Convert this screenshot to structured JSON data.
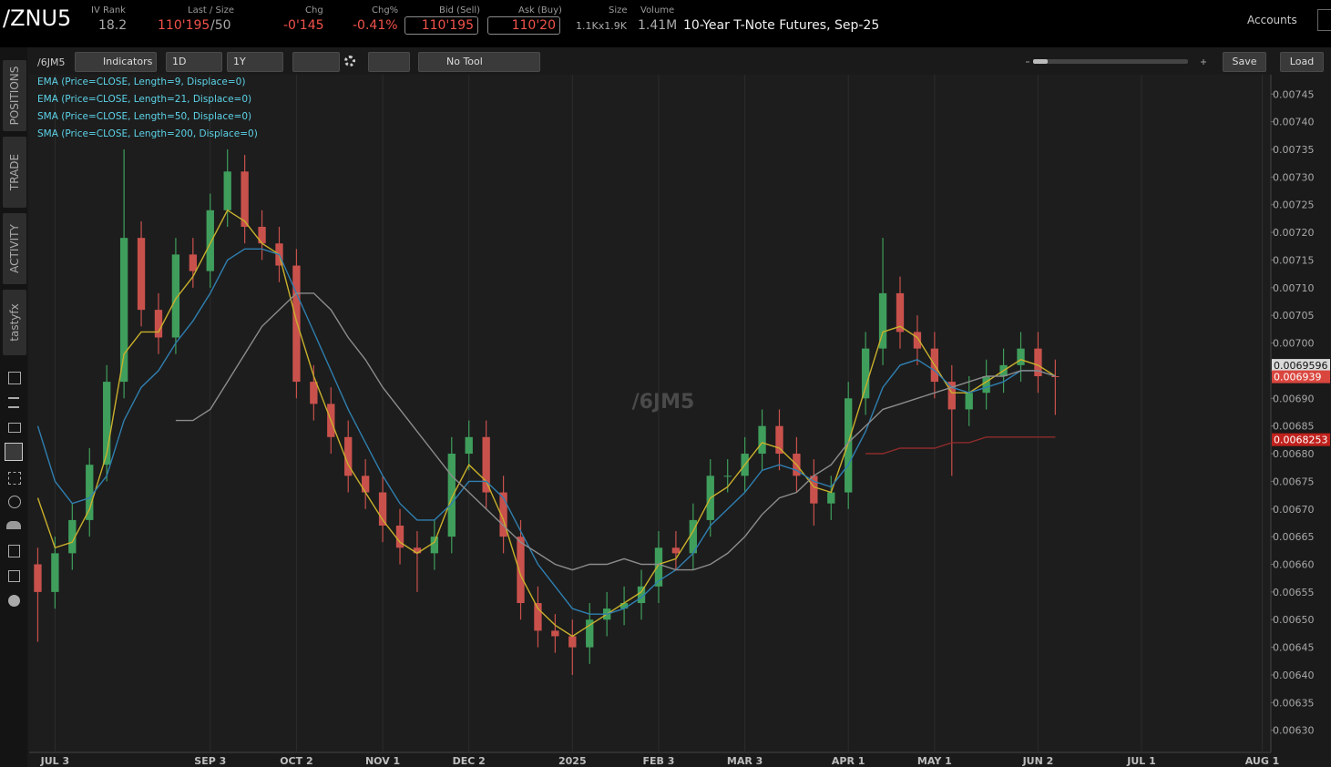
{
  "header": {
    "symbol": "/ZNU5",
    "iv_rank_label": "IV Rank",
    "iv_rank": 18.2,
    "last_label": "Last / Size",
    "last": "110'195",
    "size_last": "/50",
    "chg_label": "Chg",
    "chg": "-0'145",
    "chg_pct_label": "Chg%",
    "chg_pct": "-0.41%",
    "bid_label": "Bid (Sell)",
    "bid": "110'195",
    "ask_label": "Ask (Buy)",
    "ask": "110'20",
    "size_label": "Size",
    "size": "1.1Kx1.9K",
    "volume_label": "Volume",
    "volume": "1.41M",
    "description": "10-Year T-Note Futures, Sep-25",
    "accounts": "Accounts"
  },
  "sidebar": {
    "tabs": [
      "POSITIONS",
      "TRADE",
      "ACTIVITY",
      "tastyfx"
    ]
  },
  "toolbar": {
    "symbol": "/6JM5",
    "indicators": "Indicators",
    "interval": "1D",
    "range": "1Y",
    "tool": "No Tool",
    "save": "Save",
    "load": "Load"
  },
  "chart_data": {
    "type": "candlestick",
    "watermark": "/6JM5",
    "categories": [
      null,
      "JUL 3",
      null,
      null,
      null,
      null,
      null,
      null,
      null,
      null,
      "SEP 3",
      null,
      null,
      null,
      null,
      "OCT 2",
      null,
      null,
      null,
      null,
      "NOV 1",
      null,
      null,
      null,
      null,
      "DEC 2",
      null,
      null,
      null,
      null,
      null,
      "2025",
      null,
      null,
      null,
      null,
      "FEB 3",
      null,
      null,
      null,
      null,
      "MAR 3",
      null,
      null,
      null,
      null,
      null,
      "APR 1",
      null,
      null,
      null,
      null,
      "MAY 1",
      null,
      null,
      null,
      null,
      null,
      "JUN 2",
      null,
      null,
      null,
      null,
      null,
      "JUL 1",
      null,
      null,
      null,
      null,
      null,
      null,
      "AUG 1"
    ],
    "open": [
      0.0066,
      0.00655,
      0.00662,
      0.00668,
      0.00678,
      0.00693,
      0.00719,
      0.00706,
      0.00701,
      0.00716,
      0.00713,
      0.00724,
      0.00731,
      0.00721,
      0.00718,
      0.00714,
      0.00693,
      0.00689,
      0.00683,
      0.00676,
      0.00673,
      0.00667,
      0.00663,
      0.00662,
      0.00665,
      0.0068,
      0.00683,
      0.00673,
      0.00665,
      0.00653,
      0.00648,
      0.00647,
      0.00645,
      0.0065,
      0.00652,
      0.00653,
      0.00656,
      0.00663,
      0.00662,
      0.00668,
      0.00676,
      0.00676,
      0.0068,
      0.00685,
      0.0068,
      0.00676,
      0.00671,
      0.00673,
      0.0069,
      0.00699,
      0.00709,
      0.00702,
      0.00699,
      0.00693,
      0.00688,
      0.00691,
      0.00694,
      0.00696,
      0.00699,
      0.00694,
      null,
      null,
      null,
      null,
      null,
      null,
      null,
      null,
      null,
      null,
      null,
      null
    ],
    "high": [
      0.00663,
      0.00665,
      0.00671,
      0.00681,
      0.00696,
      0.00735,
      0.00722,
      0.00709,
      0.00719,
      0.00719,
      0.00727,
      0.00735,
      0.00734,
      0.00724,
      0.00721,
      0.00717,
      0.00696,
      0.00692,
      0.00686,
      0.00679,
      0.00676,
      0.0067,
      0.00666,
      0.00668,
      0.00683,
      0.00686,
      0.00686,
      0.00676,
      0.00668,
      0.00656,
      0.00651,
      0.0065,
      0.00653,
      0.00655,
      0.00656,
      0.00659,
      0.00666,
      0.00666,
      0.00671,
      0.00679,
      0.00679,
      0.00683,
      0.00688,
      0.00688,
      0.00683,
      0.00679,
      0.00676,
      0.00693,
      0.00702,
      0.00719,
      0.00712,
      0.00705,
      0.00702,
      0.00696,
      0.00694,
      0.00697,
      0.00699,
      0.00702,
      0.00702,
      0.00697,
      null,
      null,
      null,
      null,
      null,
      null,
      null,
      null,
      null,
      null,
      null,
      null
    ],
    "low": [
      0.00646,
      0.00652,
      0.00659,
      0.00665,
      0.00675,
      0.0069,
      0.00703,
      0.00698,
      0.00698,
      0.0071,
      0.0071,
      0.00721,
      0.00718,
      0.00715,
      0.00711,
      0.0069,
      0.00686,
      0.0068,
      0.00673,
      0.0067,
      0.00664,
      0.0066,
      0.00655,
      0.00659,
      0.00662,
      0.00677,
      0.0067,
      0.00662,
      0.0065,
      0.00645,
      0.00644,
      0.0064,
      0.00642,
      0.00647,
      0.00649,
      0.0065,
      0.00653,
      0.00659,
      0.00659,
      0.00665,
      0.00673,
      0.00673,
      0.00677,
      0.00677,
      0.00673,
      0.00667,
      0.00668,
      0.0067,
      0.00687,
      0.00696,
      0.00699,
      0.00696,
      0.0069,
      0.00676,
      0.00685,
      0.00688,
      0.00691,
      0.00693,
      0.00691,
      0.00687,
      null,
      null,
      null,
      null,
      null,
      null,
      null,
      null,
      null,
      null,
      null,
      null
    ],
    "close": [
      0.00655,
      0.00662,
      0.00668,
      0.00678,
      0.00693,
      0.00719,
      0.00706,
      0.00701,
      0.00716,
      0.00713,
      0.00724,
      0.00731,
      0.00721,
      0.00718,
      0.00714,
      0.00693,
      0.00689,
      0.00683,
      0.00676,
      0.00673,
      0.00667,
      0.00663,
      0.00662,
      0.00665,
      0.0068,
      0.00683,
      0.00673,
      0.00665,
      0.00653,
      0.00648,
      0.00647,
      0.00645,
      0.0065,
      0.00652,
      0.00653,
      0.00656,
      0.00663,
      0.00662,
      0.00668,
      0.00676,
      0.00676,
      0.0068,
      0.00685,
      0.0068,
      0.00676,
      0.00671,
      0.00673,
      0.0069,
      0.00699,
      0.00709,
      0.00702,
      0.00699,
      0.00693,
      0.00688,
      0.00691,
      0.00694,
      0.00696,
      0.00699,
      0.00694,
      0.006939,
      null,
      null,
      null,
      null,
      null,
      null,
      null,
      null,
      null,
      null,
      null,
      null
    ],
    "up_color": "#3f9e5c",
    "down_color": "#c9514c",
    "series": [
      {
        "name": "EMA (Price=CLOSE, Length=9, Displace=0)",
        "color": "#c9b02c",
        "values": [
          0.00672,
          0.00663,
          0.00664,
          0.0067,
          0.0068,
          0.00698,
          0.00702,
          0.00702,
          0.00708,
          0.00712,
          0.00718,
          0.00724,
          0.00722,
          0.00718,
          0.00716,
          0.00704,
          0.00694,
          0.00686,
          0.00678,
          0.00673,
          0.00668,
          0.00664,
          0.00662,
          0.00664,
          0.00672,
          0.00678,
          0.00675,
          0.00668,
          0.00658,
          0.00652,
          0.00649,
          0.00647,
          0.00649,
          0.00651,
          0.00653,
          0.00655,
          0.0066,
          0.00661,
          0.00666,
          0.00672,
          0.00674,
          0.00678,
          0.00682,
          0.00681,
          0.00678,
          0.00674,
          0.00673,
          0.00682,
          0.00692,
          0.00702,
          0.00703,
          0.00701,
          0.00696,
          0.00691,
          0.00691,
          0.00693,
          0.00695,
          0.00697,
          0.00696,
          0.00694,
          null,
          null,
          null,
          null,
          null,
          null,
          null,
          null,
          null,
          null,
          null,
          null
        ]
      },
      {
        "name": "EMA (Price=CLOSE, Length=21, Displace=0)",
        "color": "#2f7fb0",
        "values": [
          0.00685,
          0.00675,
          0.00671,
          0.00672,
          0.00676,
          0.00686,
          0.00692,
          0.00695,
          0.007,
          0.00704,
          0.00709,
          0.00715,
          0.00717,
          0.00717,
          0.00716,
          0.00709,
          0.00702,
          0.00695,
          0.00688,
          0.00682,
          0.00676,
          0.00671,
          0.00668,
          0.00668,
          0.00671,
          0.00675,
          0.00675,
          0.00672,
          0.00666,
          0.0066,
          0.00656,
          0.00652,
          0.00651,
          0.00651,
          0.00652,
          0.00654,
          0.00657,
          0.00659,
          0.00662,
          0.00667,
          0.0067,
          0.00673,
          0.00677,
          0.00678,
          0.00677,
          0.00675,
          0.00674,
          0.00678,
          0.00684,
          0.00692,
          0.00696,
          0.00697,
          0.00695,
          0.00692,
          0.00691,
          0.00692,
          0.00693,
          0.00695,
          0.00695,
          0.00694,
          null,
          null,
          null,
          null,
          null,
          null,
          null,
          null,
          null,
          null,
          null,
          null
        ]
      },
      {
        "name": "SMA (Price=CLOSE, Length=50, Displace=0)",
        "color": "#8c8c8c",
        "values": [
          null,
          null,
          null,
          null,
          null,
          null,
          null,
          null,
          0.00686,
          0.00686,
          0.00688,
          0.00693,
          0.00698,
          0.00703,
          0.00706,
          0.00709,
          0.00709,
          0.00706,
          0.00701,
          0.00697,
          0.00692,
          0.00688,
          0.00684,
          0.0068,
          0.00676,
          0.00673,
          0.0067,
          0.00667,
          0.00664,
          0.00662,
          0.0066,
          0.00659,
          0.0066,
          0.0066,
          0.00661,
          0.0066,
          0.0066,
          0.00659,
          0.00659,
          0.0066,
          0.00662,
          0.00665,
          0.00669,
          0.00672,
          0.00673,
          0.00676,
          0.00678,
          0.00682,
          0.00685,
          0.00688,
          0.00689,
          0.0069,
          0.00691,
          0.00692,
          0.00693,
          0.00694,
          0.00694,
          0.00695,
          0.00695,
          0.00694,
          null,
          null,
          null,
          null,
          null,
          null,
          null,
          null,
          null,
          null,
          null,
          null
        ]
      },
      {
        "name": "SMA (Price=CLOSE, Length=200, Displace=0)",
        "color": "#8e2b2b",
        "values": [
          null,
          null,
          null,
          null,
          null,
          null,
          null,
          null,
          null,
          null,
          null,
          null,
          null,
          null,
          null,
          null,
          null,
          null,
          null,
          null,
          null,
          null,
          null,
          null,
          null,
          null,
          null,
          null,
          null,
          null,
          null,
          null,
          null,
          null,
          null,
          null,
          null,
          null,
          null,
          null,
          null,
          null,
          null,
          null,
          null,
          null,
          null,
          null,
          0.0068,
          0.0068,
          0.00681,
          0.00681,
          0.00681,
          0.00682,
          0.00682,
          0.00683,
          0.00683,
          0.00683,
          0.00683,
          0.00683,
          null,
          null,
          null,
          null,
          null,
          null,
          null,
          null,
          null,
          null,
          null,
          null
        ]
      }
    ],
    "ylim": [
      0.00626,
      0.007485
    ],
    "yticks": [
      {
        "value": 0.0063,
        "label": "0.00630"
      },
      0.00635,
      {
        "value": 0.0064,
        "label": "0.00640"
      },
      0.00645,
      {
        "value": 0.0065,
        "label": "0.00650"
      },
      0.00655,
      {
        "value": 0.0066,
        "label": "0.00660"
      },
      0.00665,
      {
        "value": 0.0067,
        "label": "0.00670"
      },
      0.00675,
      {
        "value": 0.0068,
        "label": "0.00680"
      },
      0.00685,
      {
        "value": 0.0069,
        "label": "0.00690"
      },
      0.00695,
      {
        "value": 0.007,
        "label": "0.00700"
      },
      0.00705,
      {
        "value": 0.0071,
        "label": "0.00710"
      },
      0.00715,
      {
        "value": 0.0072,
        "label": "0.00720"
      },
      0.00725,
      {
        "value": 0.0073,
        "label": "0.00730"
      },
      0.00735,
      {
        "value": 0.0074,
        "label": "0.00740"
      },
      0.00745
    ],
    "price_markers": [
      {
        "value": 0.0069596,
        "color": "#d9d9d9"
      },
      {
        "value": 0.006939,
        "color": "#d9463e"
      },
      {
        "value": 0.0068253,
        "color": "#c0211c"
      }
    ],
    "grid": true
  }
}
